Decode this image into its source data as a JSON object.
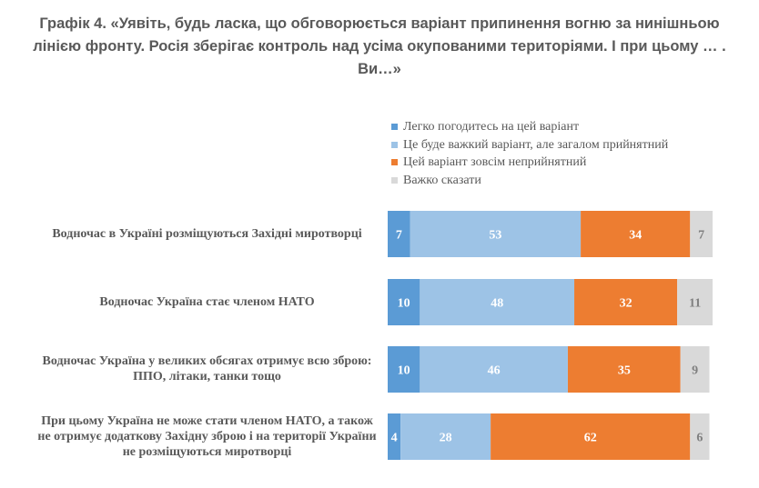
{
  "chart_data": {
    "type": "bar",
    "orientation": "horizontal",
    "stacked": true,
    "title": "Графік 4. «Уявіть, будь ласка, що обговорюється варіант припинення вогню за нинішньою лінією фронту. Росія зберігає контроль над усіма окупованими територіями. І при цьому … . Ви…»",
    "xlabel": "",
    "ylabel": "",
    "legend_position": "top-right",
    "grid": false,
    "categories": [
      "Водночас в Україні розміщуються Західні миротворці",
      "Водночас Україна стає членом НАТО",
      "Водночас Україна у великих обсягах отримує всю зброю: ППО, літаки, танки тощо",
      "При цьому Україна не може стати членом НАТО, а також не отримує додаткову Західну зброю і на території України не розміщуються миротворці"
    ],
    "series": [
      {
        "name": "Легко погодитесь на цей варіант",
        "color": "#5b9bd5",
        "label_color": "#ffffff",
        "values": [
          7,
          10,
          10,
          4
        ]
      },
      {
        "name": "Це буде важкий варіант, але загалом прийнятний",
        "color": "#9dc3e6",
        "label_color": "#ffffff",
        "values": [
          53,
          48,
          46,
          28
        ]
      },
      {
        "name": "Цей варіант зовсім неприйнятний",
        "color": "#ed7d31",
        "label_color": "#ffffff",
        "values": [
          34,
          32,
          35,
          62
        ]
      },
      {
        "name": "Важко сказати",
        "color": "#d9d9d9",
        "label_color": "#7f7f7f",
        "values": [
          7,
          11,
          9,
          6
        ]
      }
    ],
    "unit": "%"
  }
}
